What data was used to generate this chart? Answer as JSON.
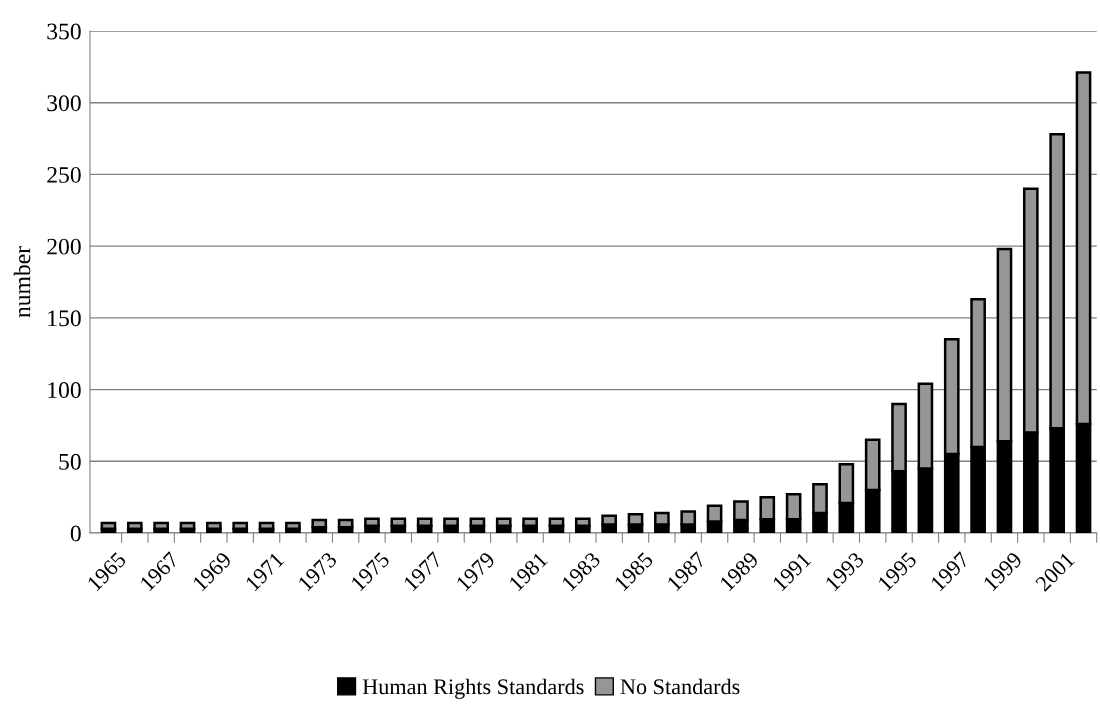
{
  "chart_data": {
    "type": "bar",
    "stacked": true,
    "ylabel": "number",
    "categories": [
      "1965",
      null,
      "1967",
      null,
      "1969",
      null,
      "1971",
      null,
      "1973",
      null,
      "1975",
      null,
      "1977",
      null,
      "1979",
      null,
      "1981",
      null,
      "1983",
      null,
      "1985",
      null,
      "1987",
      null,
      "1989",
      null,
      "1991",
      null,
      "1993",
      null,
      "1995",
      null,
      "1997",
      null,
      "1999",
      null,
      "2001",
      null
    ],
    "series": [
      {
        "name": "Human Rights Standards",
        "color": "#000000",
        "values": [
          3,
          3,
          3,
          3,
          3,
          3,
          3,
          3,
          4,
          4,
          5,
          5,
          5,
          5,
          5,
          5,
          5,
          5,
          5,
          6,
          6,
          6,
          6,
          8,
          9,
          9.5,
          9.5,
          14,
          21,
          30,
          43,
          45,
          55,
          60,
          64,
          70,
          73,
          76
        ]
      },
      {
        "name": "No Standards",
        "color": "#969696",
        "values": [
          4,
          4,
          4,
          4,
          4,
          4,
          4,
          4,
          5,
          5,
          5,
          5,
          5,
          5,
          5,
          5,
          5,
          5,
          5,
          6,
          7,
          8,
          9,
          11,
          13,
          15.5,
          17.5,
          20,
          27,
          35,
          47,
          59,
          80,
          103,
          134,
          170,
          205,
          245
        ]
      }
    ],
    "ylim": [
      0,
      350
    ],
    "yticks": [
      0,
      50,
      100,
      150,
      200,
      250,
      300,
      350
    ],
    "grid": "y",
    "legend": "bottom"
  }
}
